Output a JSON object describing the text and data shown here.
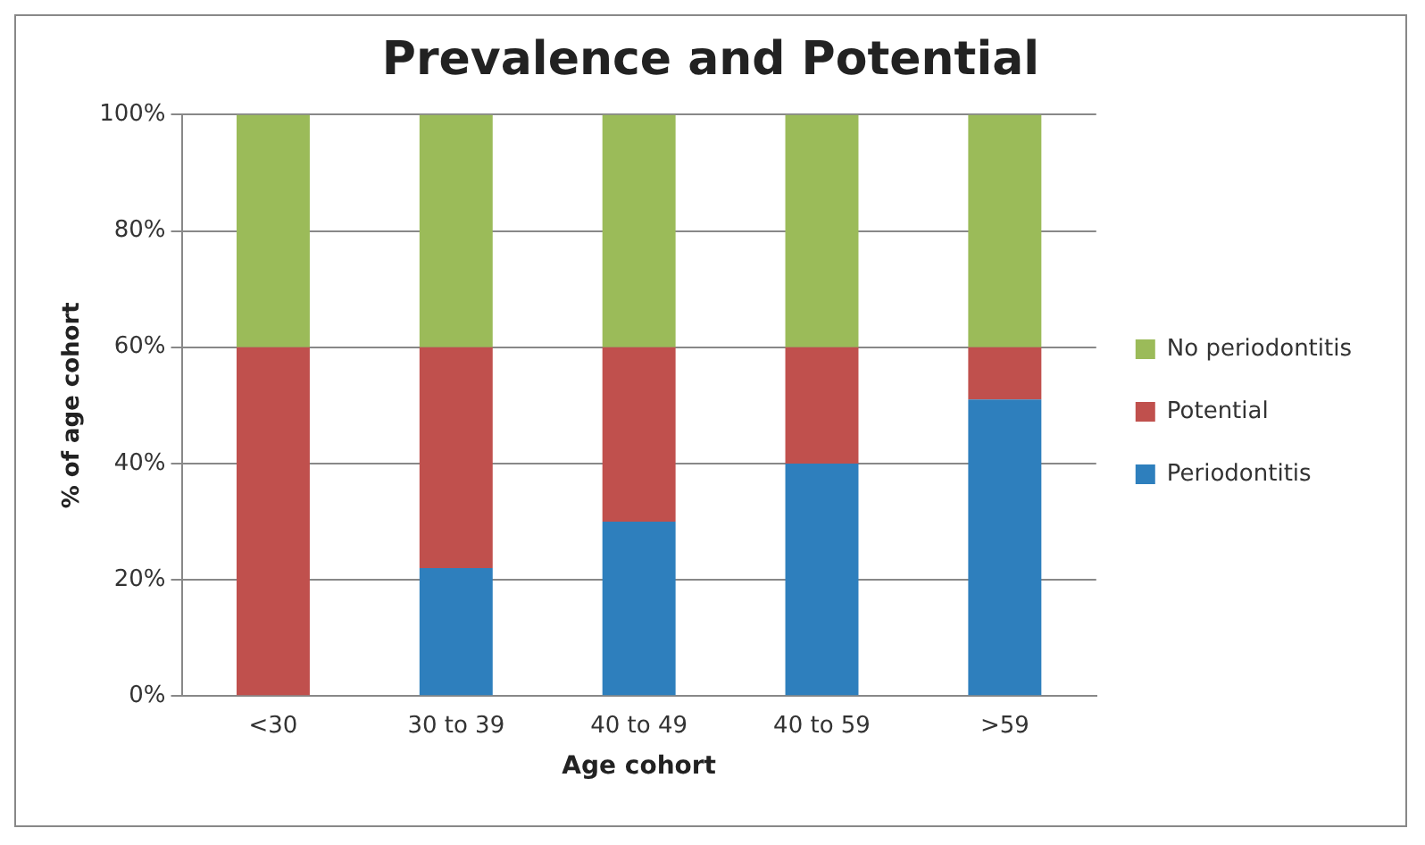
{
  "chart_data": {
    "type": "bar",
    "title": "Prevalence and Potential",
    "xlabel": "Age cohort",
    "ylabel": "% of age cohort",
    "categories": [
      "<30",
      "30 to 39",
      "40 to 49",
      "40 to 59",
      ">59"
    ],
    "series": [
      {
        "name": "Periodontitis",
        "color": "#2e7fbd",
        "values": [
          0,
          22,
          30,
          40,
          51
        ]
      },
      {
        "name": "Potential",
        "color": "#c0504d",
        "values": [
          60,
          38,
          30,
          20,
          9
        ]
      },
      {
        "name": "No periodontitis",
        "color": "#9bbb59",
        "values": [
          40,
          40,
          40,
          40,
          40
        ]
      }
    ],
    "stacked": true,
    "ylim": [
      0,
      100
    ],
    "yticks": [
      {
        "value": 0,
        "label": "0%"
      },
      {
        "value": 20,
        "label": "20%"
      },
      {
        "value": 40,
        "label": "40%"
      },
      {
        "value": 60,
        "label": "60%"
      },
      {
        "value": 80,
        "label": "80%"
      },
      {
        "value": 100,
        "label": "100%"
      }
    ],
    "grid": "y",
    "legend": "right"
  }
}
